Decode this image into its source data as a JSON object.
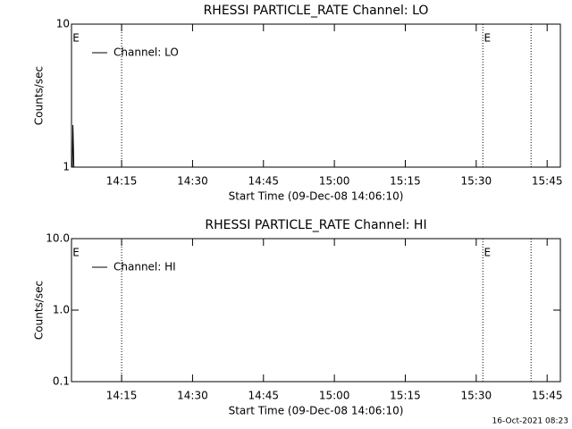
{
  "chart_data": [
    {
      "type": "line",
      "title": "RHESSI PARTICLE_RATE Channel: LO",
      "xlabel": "Start Time (09-Dec-08 14:06:10)",
      "ylabel": "Counts/sec",
      "series": [
        {
          "name": "Channel: LO",
          "color": "#000000",
          "x": [
            844.6,
            844.7,
            844.9
          ],
          "values": [
            1.0,
            1.97,
            1.0
          ]
        }
      ],
      "xlim": [
        844.4,
        947.8
      ],
      "xticks": [
        {
          "value": 855,
          "label": "14:15"
        },
        {
          "value": 870,
          "label": "14:30"
        },
        {
          "value": 885,
          "label": "14:45"
        },
        {
          "value": 900,
          "label": "15:00"
        },
        {
          "value": 915,
          "label": "15:15"
        },
        {
          "value": 930,
          "label": "15:30"
        },
        {
          "value": 945,
          "label": "15:45"
        }
      ],
      "ylim": [
        1,
        10
      ],
      "yticks": [
        1,
        10
      ],
      "log_y": true,
      "legend": "upper left",
      "vlines": [
        855,
        931.4,
        941.6
      ],
      "flags": [
        {
          "x": 844.4,
          "label": "E"
        },
        {
          "x": 931.4,
          "label": "E"
        }
      ]
    },
    {
      "type": "line",
      "title": "RHESSI PARTICLE_RATE Channel: HI",
      "xlabel": "Start Time (09-Dec-08 14:06:10)",
      "ylabel": "Counts/sec",
      "series": [
        {
          "name": "Channel: HI",
          "color": "#000000",
          "x": [],
          "values": []
        }
      ],
      "xlim": [
        844.4,
        947.8
      ],
      "xticks": [
        {
          "value": 855,
          "label": "14:15"
        },
        {
          "value": 870,
          "label": "14:30"
        },
        {
          "value": 885,
          "label": "14:45"
        },
        {
          "value": 900,
          "label": "15:00"
        },
        {
          "value": 915,
          "label": "15:15"
        },
        {
          "value": 930,
          "label": "15:30"
        },
        {
          "value": 945,
          "label": "15:45"
        }
      ],
      "ylim": [
        0.1,
        10
      ],
      "yticks": [
        0.1,
        {
          "value": 1,
          "label": "1.0"
        },
        {
          "value": 10,
          "label": "10.0"
        }
      ],
      "log_y": true,
      "legend": "upper left",
      "vlines": [
        855,
        931.4,
        941.6
      ],
      "flags": [
        {
          "x": 844.4,
          "label": "E"
        },
        {
          "x": 931.4,
          "label": "E"
        }
      ]
    }
  ],
  "footer": "16-Oct-2021 08:23"
}
